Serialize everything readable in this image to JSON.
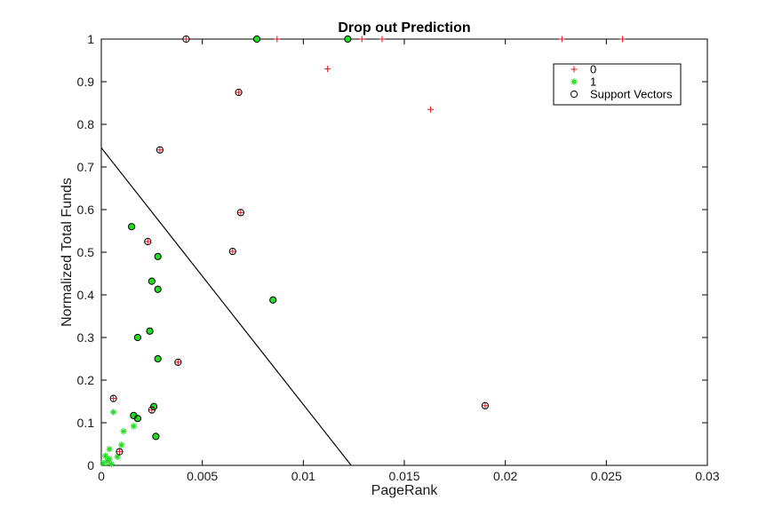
{
  "chart_data": {
    "type": "scatter",
    "title": "Drop out Prediction",
    "xlabel": "PageRank",
    "ylabel": "Normalized Total Funds",
    "xlim": [
      0,
      0.03
    ],
    "ylim": [
      0,
      1
    ],
    "xticks": [
      0,
      0.005,
      0.01,
      0.015,
      0.02,
      0.025,
      0.03
    ],
    "xtick_labels": [
      "0",
      "0.005",
      "0.01",
      "0.015",
      "0.02",
      "0.025",
      "0.03"
    ],
    "yticks": [
      0,
      0.1,
      0.2,
      0.3,
      0.4,
      0.5,
      0.6,
      0.7,
      0.8,
      0.9,
      1
    ],
    "ytick_labels": [
      "0",
      "0.1",
      "0.2",
      "0.3",
      "0.4",
      "0.5",
      "0.6",
      "0.7",
      "0.8",
      "0.9",
      "1"
    ],
    "grid": false,
    "legend_position": "top-right",
    "legend": [
      "0",
      "1",
      "Support Vectors"
    ],
    "colors": {
      "class0": "#e8202a",
      "class1": "#22dd22",
      "sv_edge": "#000000",
      "boundary": "#000000"
    },
    "series": [
      {
        "name": "0",
        "marker": "plus",
        "points": [
          [
            0.0042,
            1.0
          ],
          [
            0.0087,
            1.0
          ],
          [
            0.0129,
            1.0
          ],
          [
            0.0139,
            1.0
          ],
          [
            0.0228,
            1.0
          ],
          [
            0.0258,
            1.0
          ],
          [
            0.0112,
            0.93
          ],
          [
            0.0163,
            0.835
          ],
          [
            0.0068,
            0.875
          ],
          [
            0.0029,
            0.74
          ],
          [
            0.0069,
            0.593
          ],
          [
            0.0023,
            0.525
          ],
          [
            0.0065,
            0.502
          ],
          [
            0.0038,
            0.242
          ],
          [
            0.0006,
            0.157
          ],
          [
            0.0025,
            0.13
          ],
          [
            0.0009,
            0.032
          ],
          [
            0.019,
            0.14
          ]
        ]
      },
      {
        "name": "1",
        "marker": "star",
        "points": [
          [
            0.0077,
            1.0
          ],
          [
            0.0122,
            1.0
          ],
          [
            0.0015,
            0.56
          ],
          [
            0.0028,
            0.49
          ],
          [
            0.0025,
            0.432
          ],
          [
            0.0028,
            0.413
          ],
          [
            0.0085,
            0.388
          ],
          [
            0.0024,
            0.315
          ],
          [
            0.0018,
            0.3
          ],
          [
            0.0028,
            0.25
          ],
          [
            0.0026,
            0.138
          ],
          [
            0.0016,
            0.117
          ],
          [
            0.0018,
            0.11
          ],
          [
            0.0027,
            0.068
          ],
          [
            0.0006,
            0.125
          ],
          [
            0.0016,
            0.092
          ],
          [
            0.0011,
            0.08
          ],
          [
            0.001,
            0.048
          ],
          [
            0.0004,
            0.038
          ],
          [
            0.0002,
            0.022
          ],
          [
            0.0004,
            0.015
          ],
          [
            0.0003,
            0.01
          ],
          [
            0.0001,
            0.005
          ],
          [
            0.0008,
            0.02
          ],
          [
            0.0005,
            0.003
          ]
        ]
      },
      {
        "name": "Support Vectors",
        "marker": "circle",
        "points": [
          [
            0.0042,
            1.0
          ],
          [
            0.0077,
            1.0
          ],
          [
            0.0122,
            1.0
          ],
          [
            0.0068,
            0.875
          ],
          [
            0.0029,
            0.74
          ],
          [
            0.0069,
            0.593
          ],
          [
            0.0015,
            0.56
          ],
          [
            0.0023,
            0.525
          ],
          [
            0.0065,
            0.502
          ],
          [
            0.0028,
            0.49
          ],
          [
            0.0025,
            0.432
          ],
          [
            0.0028,
            0.413
          ],
          [
            0.0085,
            0.388
          ],
          [
            0.0024,
            0.315
          ],
          [
            0.0018,
            0.3
          ],
          [
            0.0028,
            0.25
          ],
          [
            0.0038,
            0.242
          ],
          [
            0.0006,
            0.157
          ],
          [
            0.019,
            0.14
          ],
          [
            0.0026,
            0.138
          ],
          [
            0.0025,
            0.13
          ],
          [
            0.0016,
            0.117
          ],
          [
            0.0018,
            0.11
          ],
          [
            0.0027,
            0.068
          ],
          [
            0.0009,
            0.032
          ]
        ]
      }
    ],
    "decision_boundary": [
      [
        0,
        0.745
      ],
      [
        0.01237,
        0
      ]
    ]
  }
}
